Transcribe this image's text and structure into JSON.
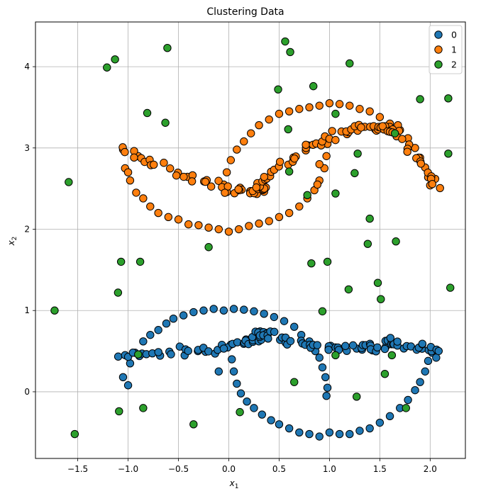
{
  "chart_data": {
    "type": "scatter",
    "title": "Clustering Data",
    "xlabel": "x",
    "xlabel_sub": "1",
    "ylabel": "x",
    "ylabel_sub": "2",
    "xlim": [
      -1.92,
      2.35
    ],
    "ylim": [
      -0.82,
      4.55
    ],
    "xticks": [
      -1.5,
      -1.0,
      -0.5,
      0.0,
      0.5,
      1.0,
      1.5,
      2.0
    ],
    "xtick_labels": [
      "−1.5",
      "−1.0",
      "−0.5",
      "0.0",
      "0.5",
      "1.0",
      "1.5",
      "2.0"
    ],
    "yticks": [
      0,
      1,
      2,
      3,
      4
    ],
    "ytick_labels": [
      "0",
      "1",
      "2",
      "3",
      "4"
    ],
    "grid": true,
    "legend_position": "top-right",
    "series": [
      {
        "name": "0",
        "color": "#1f77b4",
        "shape": "lower-moon",
        "arc_x": [
          -1.08,
          0.53,
          0.31,
          1.21,
          1.63,
          2.08
        ],
        "arc_y": [
          0.45,
          0.51,
          0.74,
          0.37,
          0.61,
          0.5
        ],
        "points": [
          [
            -1.05,
            0.18
          ],
          [
            -1.0,
            0.08
          ],
          [
            -0.98,
            0.35
          ],
          [
            -0.93,
            0.48
          ],
          [
            -0.85,
            0.62
          ],
          [
            -0.78,
            0.7
          ],
          [
            -0.7,
            0.76
          ],
          [
            -0.62,
            0.84
          ],
          [
            -0.55,
            0.9
          ],
          [
            -0.45,
            0.94
          ],
          [
            -0.35,
            0.98
          ],
          [
            -0.25,
            1.0
          ],
          [
            -0.15,
            1.02
          ],
          [
            -0.05,
            1.0
          ],
          [
            0.05,
            1.02
          ],
          [
            0.15,
            1.01
          ],
          [
            0.25,
            0.99
          ],
          [
            0.35,
            0.96
          ],
          [
            0.45,
            0.92
          ],
          [
            0.55,
            0.87
          ],
          [
            0.65,
            0.8
          ],
          [
            0.72,
            0.7
          ],
          [
            0.8,
            0.62
          ],
          [
            0.86,
            0.5
          ],
          [
            0.9,
            0.42
          ],
          [
            0.93,
            0.3
          ],
          [
            0.96,
            0.18
          ],
          [
            0.98,
            0.05
          ],
          [
            0.97,
            -0.05
          ],
          [
            0.02,
            0.58
          ],
          [
            0.03,
            0.4
          ],
          [
            0.05,
            0.25
          ],
          [
            0.08,
            0.1
          ],
          [
            0.12,
            -0.02
          ],
          [
            0.18,
            -0.12
          ],
          [
            0.25,
            -0.2
          ],
          [
            0.33,
            -0.28
          ],
          [
            0.42,
            -0.35
          ],
          [
            0.5,
            -0.4
          ],
          [
            0.6,
            -0.45
          ],
          [
            0.7,
            -0.5
          ],
          [
            0.8,
            -0.52
          ],
          [
            0.9,
            -0.55
          ],
          [
            1.0,
            -0.5
          ],
          [
            1.1,
            -0.52
          ],
          [
            1.2,
            -0.52
          ],
          [
            1.3,
            -0.48
          ],
          [
            1.4,
            -0.45
          ],
          [
            1.5,
            -0.38
          ],
          [
            1.6,
            -0.3
          ],
          [
            1.7,
            -0.2
          ],
          [
            1.78,
            -0.1
          ],
          [
            1.85,
            0.02
          ],
          [
            1.9,
            0.12
          ],
          [
            1.95,
            0.25
          ],
          [
            1.98,
            0.38
          ],
          [
            2.02,
            0.48
          ],
          [
            2.06,
            0.42
          ],
          [
            1.92,
            0.53
          ],
          [
            -0.1,
            0.25
          ]
        ]
      },
      {
        "name": "1",
        "color": "#ff7f0e",
        "shape": "upper-moon",
        "arc_x": [
          -1.07,
          0.52,
          0.33,
          1.25,
          1.64,
          2.07
        ],
        "arc_y": [
          3.0,
          2.07,
          2.58,
          3.58,
          3.2,
          2.54
        ],
        "points": [
          [
            -1.05,
            2.98
          ],
          [
            -1.03,
            2.75
          ],
          [
            -0.98,
            2.6
          ],
          [
            -0.92,
            2.45
          ],
          [
            -0.85,
            2.38
          ],
          [
            -0.78,
            2.28
          ],
          [
            -0.7,
            2.2
          ],
          [
            -0.6,
            2.15
          ],
          [
            -0.5,
            2.12
          ],
          [
            -0.4,
            2.06
          ],
          [
            -0.3,
            2.05
          ],
          [
            -0.2,
            2.02
          ],
          [
            -0.1,
            2.0
          ],
          [
            0.0,
            1.97
          ],
          [
            0.1,
            2.0
          ],
          [
            0.2,
            2.04
          ],
          [
            0.3,
            2.07
          ],
          [
            0.4,
            2.1
          ],
          [
            0.5,
            2.15
          ],
          [
            0.6,
            2.2
          ],
          [
            0.7,
            2.28
          ],
          [
            0.78,
            2.38
          ],
          [
            0.85,
            2.48
          ],
          [
            0.9,
            2.6
          ],
          [
            0.95,
            2.75
          ],
          [
            0.97,
            2.9
          ],
          [
            0.98,
            3.05
          ],
          [
            -0.05,
            2.55
          ],
          [
            -0.02,
            2.7
          ],
          [
            0.02,
            2.85
          ],
          [
            0.08,
            2.98
          ],
          [
            0.15,
            3.08
          ],
          [
            0.22,
            3.18
          ],
          [
            0.3,
            3.28
          ],
          [
            0.4,
            3.35
          ],
          [
            0.5,
            3.42
          ],
          [
            0.6,
            3.45
          ],
          [
            0.7,
            3.48
          ],
          [
            0.8,
            3.5
          ],
          [
            0.9,
            3.52
          ],
          [
            1.0,
            3.55
          ],
          [
            1.1,
            3.54
          ],
          [
            1.2,
            3.52
          ],
          [
            1.3,
            3.48
          ],
          [
            1.4,
            3.45
          ],
          [
            1.5,
            3.38
          ],
          [
            1.6,
            3.3
          ],
          [
            1.7,
            3.22
          ],
          [
            1.78,
            3.12
          ],
          [
            1.85,
            3.0
          ],
          [
            1.9,
            2.88
          ],
          [
            1.95,
            2.76
          ],
          [
            1.98,
            2.64
          ],
          [
            2.0,
            2.54
          ],
          [
            2.05,
            2.62
          ],
          [
            -0.9,
            2.9
          ],
          [
            -1.0,
            2.7
          ],
          [
            0.9,
            2.8
          ],
          [
            0.88,
            2.55
          ],
          [
            1.68,
            3.28
          ]
        ]
      },
      {
        "name": "2",
        "color": "#2ca02c",
        "shape": "noise",
        "points": [
          [
            -1.21,
            3.99
          ],
          [
            -1.13,
            4.09
          ],
          [
            -0.81,
            3.43
          ],
          [
            -0.61,
            4.23
          ],
          [
            -0.63,
            3.31
          ],
          [
            0.56,
            4.31
          ],
          [
            0.61,
            4.18
          ],
          [
            1.2,
            4.04
          ],
          [
            0.49,
            3.72
          ],
          [
            0.84,
            3.76
          ],
          [
            1.9,
            3.6
          ],
          [
            2.18,
            3.61
          ],
          [
            1.06,
            3.42
          ],
          [
            0.59,
            3.23
          ],
          [
            1.65,
            3.18
          ],
          [
            1.28,
            2.93
          ],
          [
            2.18,
            2.93
          ],
          [
            0.6,
            2.71
          ],
          [
            1.25,
            2.69
          ],
          [
            -1.59,
            2.58
          ],
          [
            1.06,
            2.44
          ],
          [
            0.78,
            2.42
          ],
          [
            1.4,
            2.13
          ],
          [
            -0.2,
            1.78
          ],
          [
            1.38,
            1.82
          ],
          [
            1.66,
            1.85
          ],
          [
            -1.07,
            1.6
          ],
          [
            -0.88,
            1.6
          ],
          [
            0.82,
            1.58
          ],
          [
            0.98,
            1.6
          ],
          [
            1.48,
            1.34
          ],
          [
            2.2,
            1.28
          ],
          [
            1.19,
            1.26
          ],
          [
            -1.1,
            1.22
          ],
          [
            1.51,
            1.14
          ],
          [
            -1.73,
            1.0
          ],
          [
            0.93,
            0.99
          ],
          [
            1.06,
            0.45
          ],
          [
            -0.9,
            0.46
          ],
          [
            1.62,
            0.45
          ],
          [
            1.55,
            0.22
          ],
          [
            0.65,
            0.12
          ],
          [
            1.27,
            -0.06
          ],
          [
            -0.85,
            -0.2
          ],
          [
            -1.09,
            -0.24
          ],
          [
            0.11,
            -0.25
          ],
          [
            1.76,
            -0.2
          ],
          [
            -0.35,
            -0.4
          ],
          [
            -1.53,
            -0.52
          ]
        ]
      }
    ]
  }
}
